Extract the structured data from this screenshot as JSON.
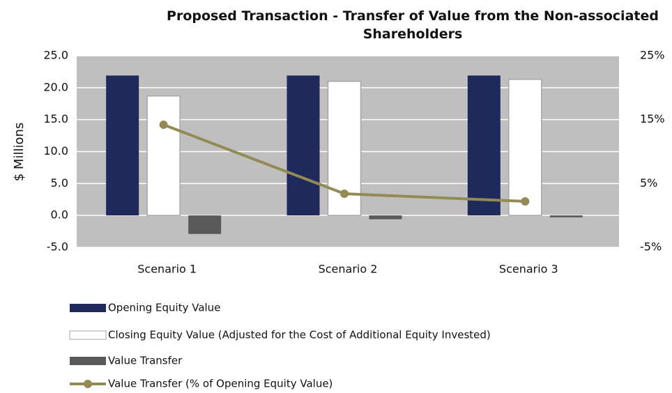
{
  "chart_data": {
    "type": "bar",
    "title": "Proposed Transaction - Transfer of Value from the Non-associated Shareholders",
    "y_label": "$ Millions",
    "categories": [
      "Scenario 1",
      "Scenario 2",
      "Scenario 3"
    ],
    "series": [
      {
        "name": "Opening Equity Value",
        "color": "#1f2a5c",
        "values": [
          21.9,
          21.9,
          21.9
        ]
      },
      {
        "name": "Closing Equity Value (Adjusted for the Cost of Additional Equity Invested)",
        "color": "#ffffff",
        "values": [
          18.7,
          21.0,
          21.3
        ]
      },
      {
        "name": "Value Transfer",
        "color": "#595959",
        "values": [
          -2.9,
          -0.6,
          -0.3
        ]
      },
      {
        "name": "Value Transfer (% of Opening Equity Value)",
        "color": "#948a54",
        "type": "line",
        "axis": "y2",
        "values": [
          14.2,
          3.4,
          2.2
        ]
      }
    ],
    "ylim": [
      -5,
      25
    ],
    "yticks": [
      {
        "value": -5,
        "label": "-5.0"
      },
      {
        "value": 0,
        "label": "0.0"
      },
      {
        "value": 5,
        "label": "5.0"
      },
      {
        "value": 10,
        "label": "10.0"
      },
      {
        "value": 15,
        "label": "15.0"
      },
      {
        "value": 20,
        "label": "20.0"
      },
      {
        "value": 25,
        "label": "25.0"
      }
    ],
    "y2lim": [
      -5,
      25
    ],
    "y2ticks": [
      {
        "value": -5,
        "label": "-5%"
      },
      {
        "value": 5,
        "label": "5%"
      },
      {
        "value": 15,
        "label": "15%"
      },
      {
        "value": 25,
        "label": "25%"
      }
    ],
    "grid": true,
    "legend": "bottom"
  }
}
